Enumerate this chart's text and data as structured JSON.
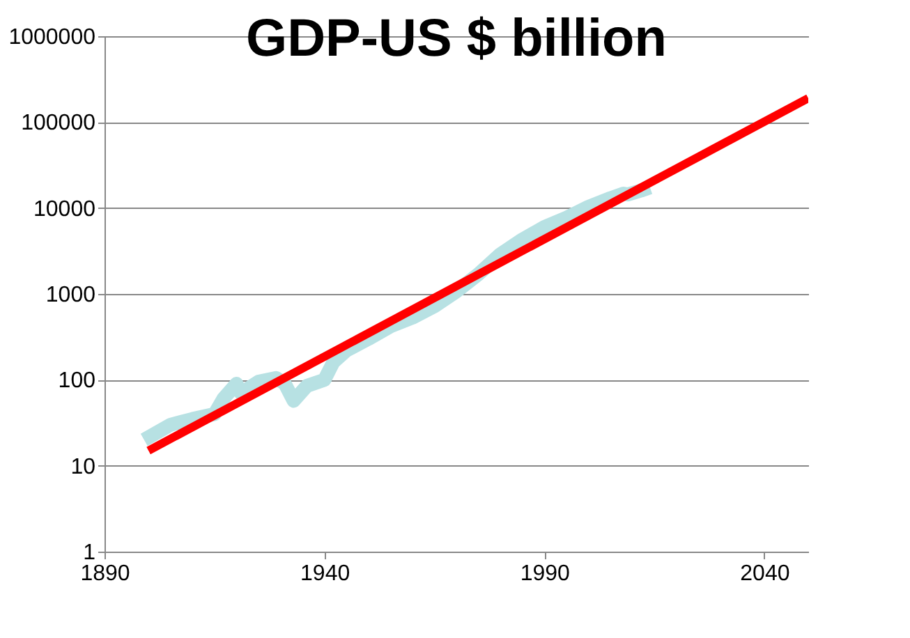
{
  "chart_data": {
    "type": "line",
    "title": "GDP-US $ billion",
    "log": true,
    "grid": "y",
    "marker": "none",
    "line_style": "solid",
    "xlim": [
      1890,
      2050
    ],
    "xticks": [
      1890,
      1940,
      1990,
      2040
    ],
    "ylim": [
      1,
      1000000
    ],
    "yticks": [
      1,
      10,
      100,
      1000,
      10000,
      100000,
      1000000
    ],
    "series": [
      {
        "color": "#b7e1e3",
        "x": [
          1899,
          1905,
          1910,
          1915,
          1917,
          1920,
          1921,
          1925,
          1929,
          1931,
          1933,
          1936,
          1940,
          1942,
          1945,
          1950,
          1955,
          1960,
          1965,
          1970,
          1975,
          1980,
          1985,
          1990,
          1995,
          2000,
          2005,
          2008,
          2009,
          2012,
          2014
        ],
        "values": [
          20,
          30,
          35,
          40,
          60,
          90,
          70,
          95,
          105,
          90,
          57,
          85,
          100,
          160,
          220,
          300,
          420,
          530,
          720,
          1070,
          1700,
          2900,
          4300,
          6000,
          7700,
          10300,
          13000,
          14700,
          14400,
          16000,
          17400
        ]
      },
      {
        "color": "#ff0000",
        "x": [
          1900,
          2050
        ],
        "values": [
          15,
          190000
        ]
      }
    ]
  }
}
